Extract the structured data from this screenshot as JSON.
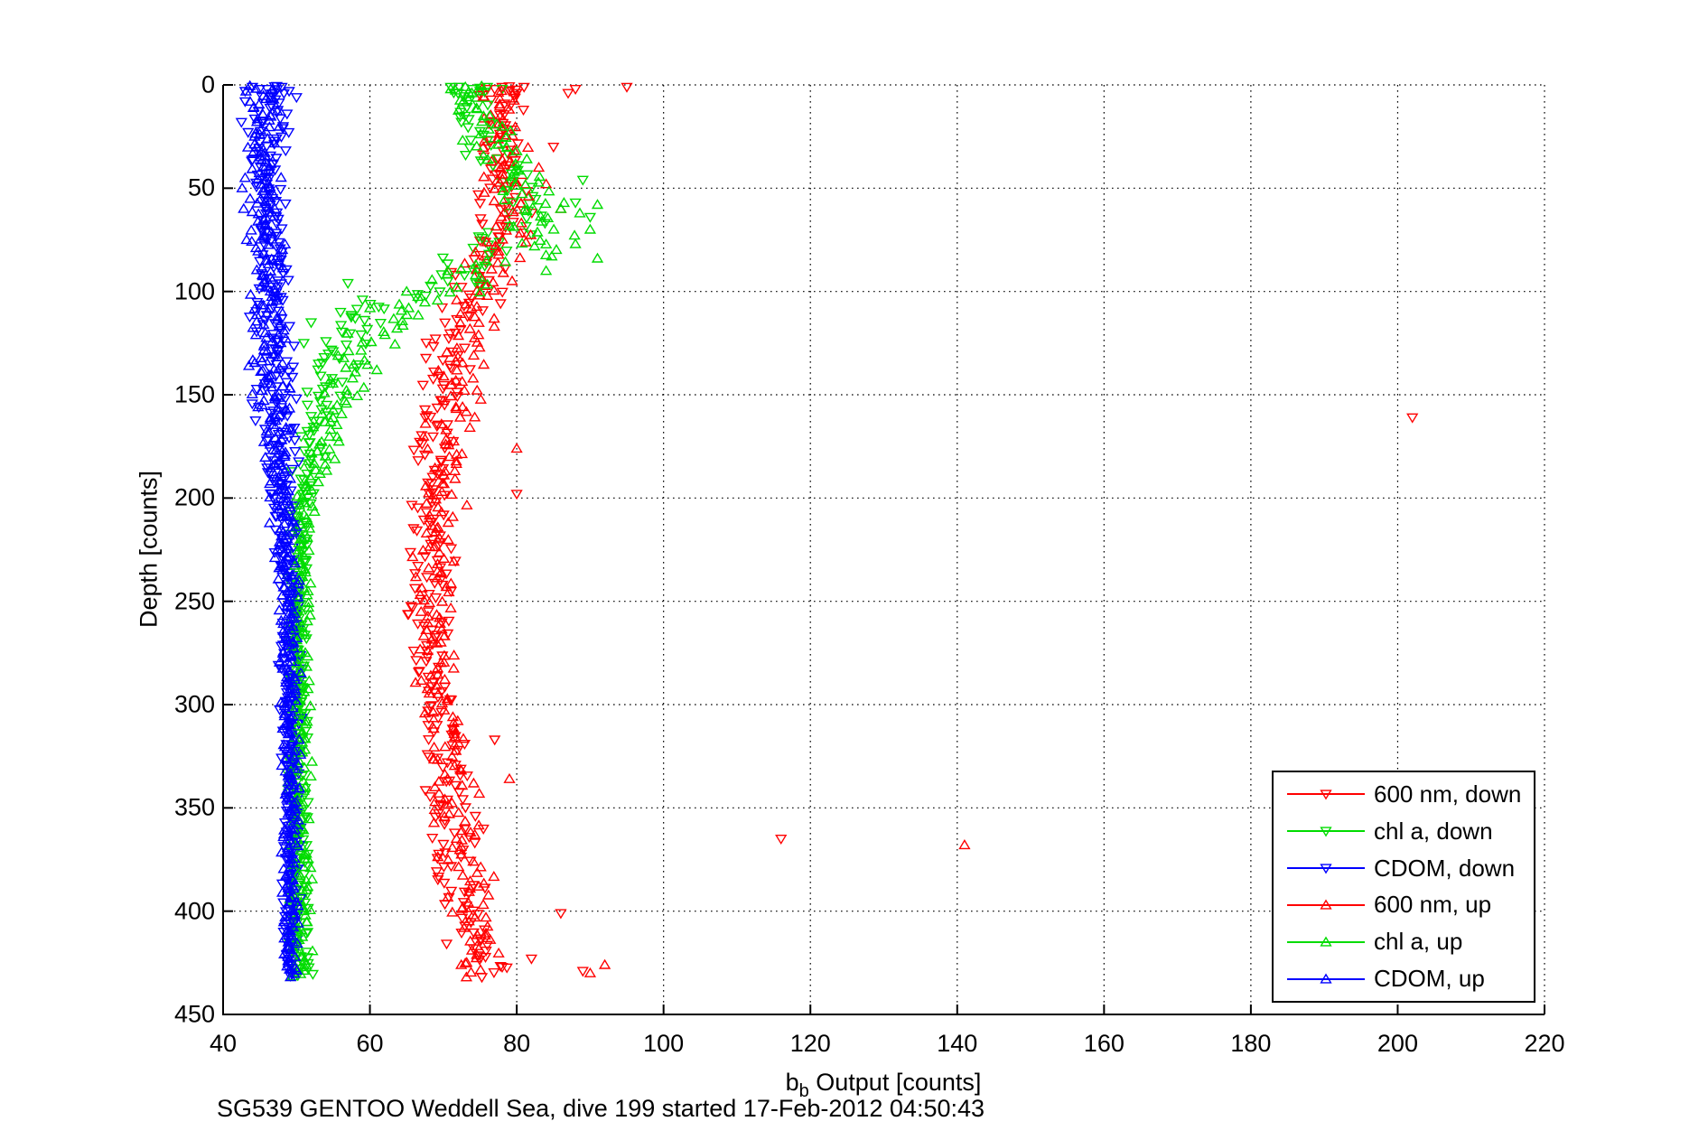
{
  "figure": {
    "caption": "SG539 GENTOO Weddell Sea, dive 199 started 17-Feb-2012 04:50:43",
    "background": "#ffffff"
  },
  "chart_data": {
    "type": "scatter",
    "title": "",
    "xlabel_main": "b",
    "xlabel_sub": "b",
    "xlabel_rest": " Output [counts]",
    "ylabel": "Depth [counts]",
    "xlim": [
      40,
      220
    ],
    "ylim": [
      0,
      450
    ],
    "y_axis_reversed": true,
    "grid": "dotted",
    "axis_color": "#000000",
    "x_ticks": [
      40,
      60,
      80,
      100,
      120,
      140,
      160,
      180,
      200,
      220
    ],
    "y_ticks": [
      0,
      50,
      100,
      150,
      200,
      250,
      300,
      350,
      400,
      450
    ],
    "legend_position": "lower-right",
    "marker_shape_note": "hollow triangles; 'down' series use downward triangles, 'up' series upward triangles",
    "series": [
      {
        "name": "600 nm, down",
        "slug": "600nm-down",
        "color": "#ff0000",
        "marker": "down",
        "n": 300,
        "seed": 11,
        "depth_max": 432,
        "profile": [
          [
            0,
            78.5,
            2.5
          ],
          [
            40,
            78.5,
            3
          ],
          [
            70,
            78,
            4
          ],
          [
            100,
            74,
            3.5
          ],
          [
            130,
            71,
            3
          ],
          [
            160,
            69.5,
            2.5
          ],
          [
            220,
            68.5,
            2.5
          ],
          [
            280,
            68.5,
            2.5
          ],
          [
            320,
            70,
            2.8
          ],
          [
            360,
            71.5,
            3
          ],
          [
            400,
            73,
            3
          ],
          [
            432,
            75,
            3.5
          ]
        ],
        "extras": [
          [
            95,
            1
          ],
          [
            88,
            2
          ],
          [
            87,
            4
          ],
          [
            81,
            1
          ],
          [
            76,
            2
          ],
          [
            79,
            3
          ],
          [
            75,
            5
          ],
          [
            78,
            1
          ],
          [
            80,
            4
          ],
          [
            77,
            2
          ],
          [
            85,
            30
          ],
          [
            202,
            161
          ],
          [
            80,
            198
          ],
          [
            77,
            317
          ],
          [
            116,
            365
          ],
          [
            86,
            401
          ],
          [
            82,
            423
          ],
          [
            89,
            429
          ]
        ]
      },
      {
        "name": "chl a, down",
        "slug": "chla-down",
        "color": "#00dc00",
        "marker": "down",
        "n": 310,
        "seed": 22,
        "depth_max": 432,
        "profile": [
          [
            0,
            74,
            2.5
          ],
          [
            25,
            75,
            3
          ],
          [
            45,
            80,
            4
          ],
          [
            70,
            81,
            4
          ],
          [
            90,
            74,
            6
          ],
          [
            105,
            63,
            5
          ],
          [
            125,
            56.5,
            3
          ],
          [
            150,
            53.5,
            2.2
          ],
          [
            175,
            52,
            1.8
          ],
          [
            200,
            50.8,
            1.4
          ],
          [
            250,
            50.3,
            1.2
          ],
          [
            350,
            50.2,
            1.2
          ],
          [
            432,
            50.5,
            1.4
          ]
        ],
        "extras": [
          [
            71,
            1
          ],
          [
            74,
            2
          ],
          [
            76,
            1
          ],
          [
            72,
            4
          ],
          [
            75,
            3
          ],
          [
            78,
            2
          ],
          [
            89,
            46
          ],
          [
            88,
            57
          ],
          [
            90,
            64
          ],
          [
            57,
            96
          ],
          [
            59,
            104
          ],
          [
            56,
            110
          ],
          [
            58,
            113
          ],
          [
            52,
            115
          ],
          [
            51,
            125
          ],
          [
            53,
            135
          ]
        ]
      },
      {
        "name": "CDOM, down",
        "slug": "cdom-down",
        "color": "#0000ff",
        "marker": "down",
        "n": 430,
        "seed": 33,
        "depth_max": 432,
        "profile": [
          [
            0,
            46.2,
            2.2
          ],
          [
            60,
            46.4,
            2.2
          ],
          [
            120,
            46.6,
            2.4
          ],
          [
            160,
            47,
            2.4
          ],
          [
            200,
            48.3,
            1.7
          ],
          [
            240,
            49,
            1.3
          ],
          [
            300,
            49.2,
            1.1
          ],
          [
            432,
            49.3,
            1
          ]
        ],
        "extras": [
          [
            44,
            1
          ],
          [
            46,
            2
          ],
          [
            43,
            3
          ],
          [
            48,
            1
          ],
          [
            47,
            4
          ],
          [
            45,
            2
          ],
          [
            49,
            3
          ],
          [
            50,
            6
          ],
          [
            43,
            8
          ],
          [
            42.5,
            18
          ]
        ]
      },
      {
        "name": "600 nm, up",
        "slug": "600nm-up",
        "color": "#ff0000",
        "marker": "up",
        "n": 300,
        "seed": 44,
        "depth_max": 432,
        "profile": [
          [
            0,
            77.5,
            2
          ],
          [
            40,
            78,
            3
          ],
          [
            70,
            79,
            4
          ],
          [
            100,
            75.5,
            3.5
          ],
          [
            130,
            72.5,
            3
          ],
          [
            170,
            70.5,
            2.8
          ],
          [
            230,
            69,
            2.5
          ],
          [
            290,
            69.5,
            2.5
          ],
          [
            330,
            71,
            2.8
          ],
          [
            380,
            73,
            3
          ],
          [
            432,
            74.5,
            3
          ]
        ],
        "extras": [
          [
            86,
            60
          ],
          [
            84,
            48
          ],
          [
            83,
            40
          ],
          [
            80,
            176
          ],
          [
            79,
            336
          ],
          [
            141,
            368
          ],
          [
            90,
            430
          ],
          [
            92,
            426
          ]
        ]
      },
      {
        "name": "chl a, up",
        "slug": "chla-up",
        "color": "#00dc00",
        "marker": "up",
        "n": 310,
        "seed": 55,
        "depth_max": 432,
        "profile": [
          [
            0,
            73.5,
            2
          ],
          [
            30,
            77,
            3.5
          ],
          [
            55,
            83,
            4
          ],
          [
            80,
            83,
            5
          ],
          [
            100,
            70,
            6
          ],
          [
            115,
            62,
            4
          ],
          [
            135,
            58.5,
            2.8
          ],
          [
            160,
            55.5,
            2.2
          ],
          [
            185,
            52.5,
            1.8
          ],
          [
            215,
            51,
            1.4
          ],
          [
            260,
            50.5,
            1.2
          ],
          [
            432,
            50.6,
            1.3
          ]
        ],
        "extras": [
          [
            73,
            1
          ],
          [
            75,
            3
          ],
          [
            71,
            2
          ],
          [
            91,
            58
          ],
          [
            90,
            70
          ],
          [
            91,
            84
          ],
          [
            86,
            60
          ],
          [
            88,
            77
          ],
          [
            84,
            90
          ],
          [
            65,
            100
          ],
          [
            60,
            108
          ]
        ]
      },
      {
        "name": "CDOM, up",
        "slug": "cdom-up",
        "color": "#0000ff",
        "marker": "up",
        "n": 430,
        "seed": 66,
        "depth_max": 432,
        "profile": [
          [
            0,
            45.6,
            1.8
          ],
          [
            60,
            45.8,
            2
          ],
          [
            120,
            46.2,
            2.2
          ],
          [
            160,
            46.8,
            2.2
          ],
          [
            200,
            48.2,
            1.6
          ],
          [
            240,
            48.9,
            1.3
          ],
          [
            300,
            49.1,
            1.1
          ],
          [
            432,
            49.2,
            1
          ]
        ],
        "extras": [
          [
            43,
            45
          ],
          [
            42.8,
            60
          ],
          [
            43.2,
            75
          ],
          [
            42.6,
            50
          ]
        ]
      }
    ]
  },
  "legend": {
    "entries": [
      "600 nm, down",
      "chl a, down",
      "CDOM, down",
      "600 nm, up",
      "chl a, up",
      "CDOM, up"
    ]
  }
}
